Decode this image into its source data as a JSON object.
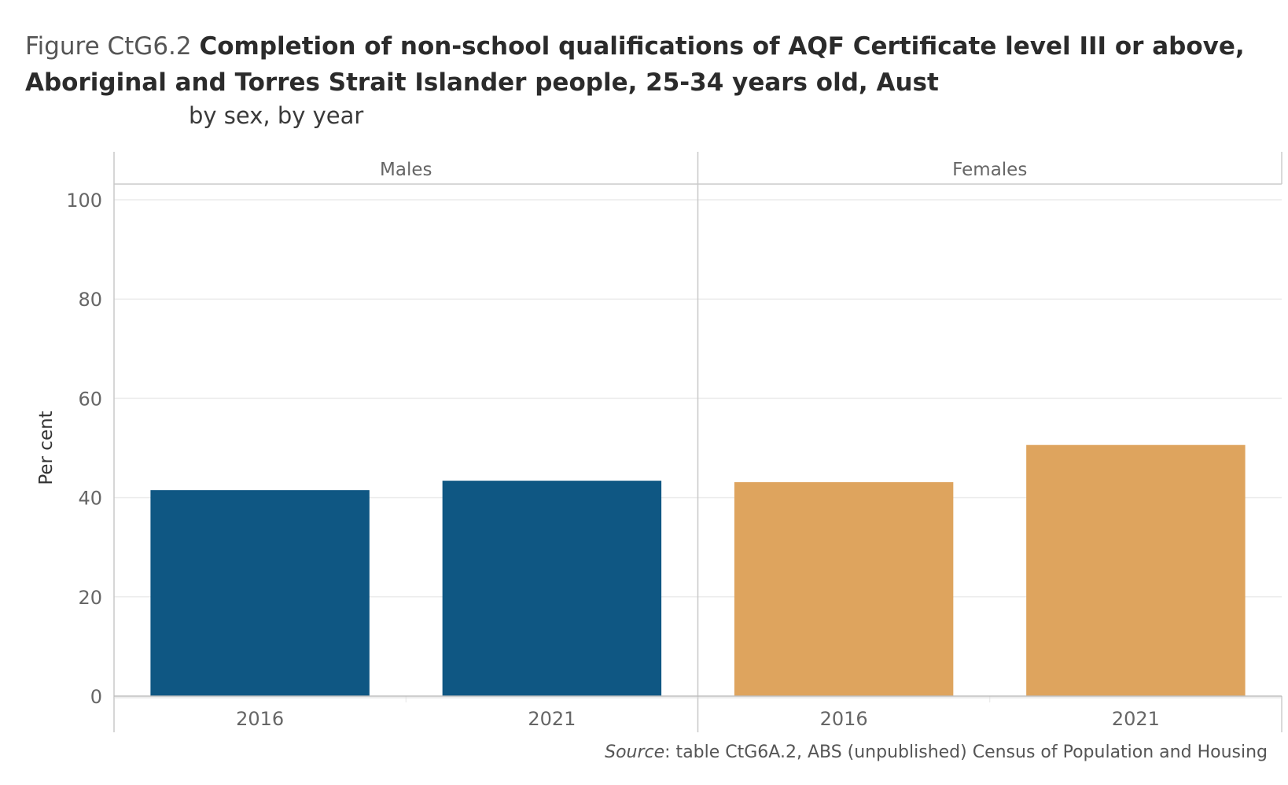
{
  "title": {
    "figure_label": "Figure CtG6.2",
    "main": "Completion of non-school qualifications of AQF Certificate level III or above, Aboriginal and Torres Strait Islander people, 25-34 years old, Aust"
  },
  "subtitle": "by sex, by year",
  "source": {
    "label": "Source",
    "text": ": table CtG6A.2, ABS (unpublished) Census of Population and Housing"
  },
  "chart_data": {
    "type": "bar",
    "ylabel": "Per cent",
    "ylim": [
      0,
      100
    ],
    "yticks": [
      "0",
      "20",
      "40",
      "60",
      "80",
      "100"
    ],
    "grid": true,
    "categories": [
      "2016",
      "2021"
    ],
    "panels": [
      {
        "name": "Males",
        "color": "#0f5783",
        "values": [
          41.5,
          43.4
        ]
      },
      {
        "name": "Females",
        "color": "#dea45e",
        "values": [
          43.1,
          50.6
        ]
      }
    ]
  }
}
